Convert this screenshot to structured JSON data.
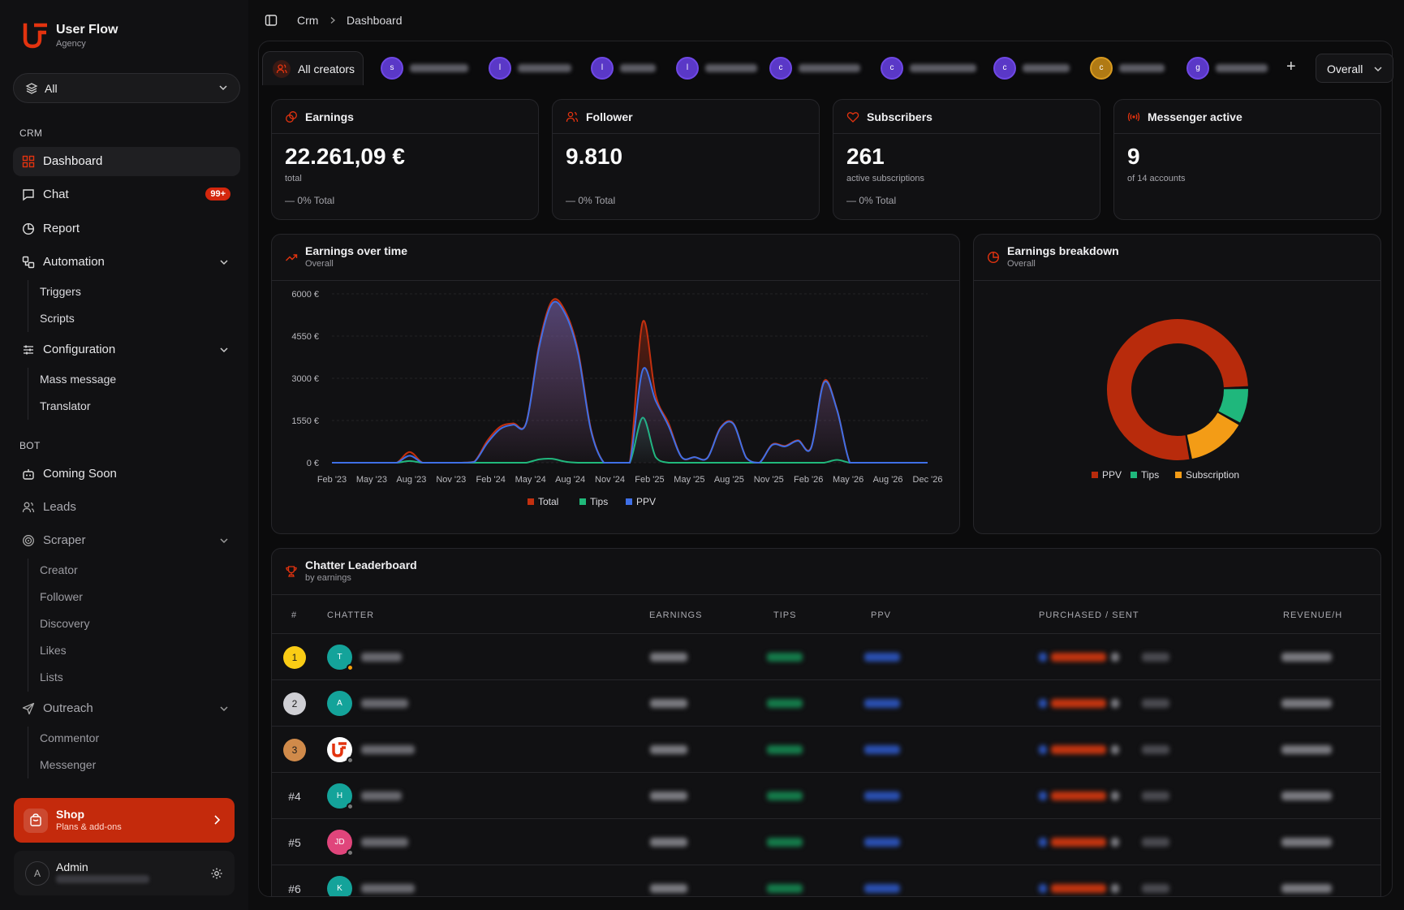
{
  "brand": {
    "name": "User Flow",
    "sub": "Agency"
  },
  "workspace_select": {
    "value": "All"
  },
  "sidebar": {
    "section_crm": "CRM",
    "dashboard": "Dashboard",
    "chat": "Chat",
    "chat_badge": "99+",
    "report": "Report",
    "automation": "Automation",
    "triggers": "Triggers",
    "scripts": "Scripts",
    "configuration": "Configuration",
    "mass_message": "Mass message",
    "translator": "Translator",
    "section_bot": "BOT",
    "coming_soon": "Coming Soon",
    "leads": "Leads",
    "scraper": "Scraper",
    "creator": "Creator",
    "follower": "Follower",
    "discovery": "Discovery",
    "likes": "Likes",
    "lists": "Lists",
    "outreach": "Outreach",
    "commentor": "Commentor",
    "messenger": "Messenger"
  },
  "shop": {
    "title": "Shop",
    "sub": "Plans & add-ons"
  },
  "admin": {
    "name": "Admin",
    "initial": "A"
  },
  "breadcrumb": {
    "root": "Crm",
    "current": "Dashboard"
  },
  "tabs": {
    "all_creators": "All creators",
    "creator_initials": [
      "s",
      "l",
      "l",
      "l",
      "c",
      "c",
      "c",
      "c",
      "g"
    ],
    "add": "+",
    "overall": "Overall"
  },
  "stats": {
    "earnings": {
      "title": "Earnings",
      "value": "22.261,09 €",
      "sub": "total",
      "delta": "— 0% Total"
    },
    "follower": {
      "title": "Follower",
      "value": "9.810",
      "delta": "— 0% Total"
    },
    "subscribers": {
      "title": "Subscribers",
      "value": "261",
      "sub": "active subscriptions",
      "delta": "— 0% Total"
    },
    "messenger": {
      "title": "Messenger active",
      "value": "9",
      "sub": "of 14 accounts"
    }
  },
  "earnings_over_time": {
    "title": "Earnings over time",
    "sub": "Overall"
  },
  "earnings_breakdown": {
    "title": "Earnings breakdown",
    "sub": "Overall"
  },
  "chart_data": [
    {
      "type": "area",
      "title": "Earnings over time",
      "x_ticks": [
        "Feb '23",
        "May '23",
        "Aug '23",
        "Nov '23",
        "Feb '24",
        "May '24",
        "Aug '24",
        "Nov '24",
        "Feb '25",
        "May '25",
        "Aug '25",
        "Nov '25",
        "Feb '26",
        "May '26",
        "Aug '26",
        "Dec '26"
      ],
      "y_ticks": [
        "6000 €",
        "4550 €",
        "3000 €",
        "1550 €",
        "0 €"
      ],
      "ylim": [
        0,
        6000
      ],
      "x": [
        "Feb '23",
        "Mar '23",
        "Apr '23",
        "May '23",
        "Jun '23",
        "Jul '23",
        "Aug '23",
        "Sep '23",
        "Oct '23",
        "Nov '23",
        "Dec '23",
        "Jan '24",
        "Feb '24",
        "Mar '24",
        "Apr '24",
        "May '24",
        "Jun '24",
        "Jul '24",
        "Aug '24",
        "Sep '24",
        "Oct '24",
        "Nov '24",
        "Dec '24",
        "Jan '25",
        "Feb '25",
        "Mar '25",
        "Apr '25",
        "May '25",
        "Jun '25",
        "Jul '25",
        "Aug '25",
        "Sep '25",
        "Oct '25",
        "Nov '25",
        "Dec '25",
        "Jan '26",
        "Feb '26",
        "Mar '26",
        "Apr '26",
        "May '26",
        "Jun '26",
        "Jul '26",
        "Aug '26",
        "Sep '26",
        "Oct '26",
        "Nov '26",
        "Dec '26"
      ],
      "series": [
        {
          "name": "Total",
          "color": "#c3300f",
          "values": [
            0,
            0,
            0,
            0,
            0,
            0,
            380,
            0,
            0,
            0,
            0,
            40,
            780,
            1280,
            1400,
            1420,
            4200,
            5750,
            5400,
            4000,
            1200,
            0,
            0,
            0,
            5000,
            2400,
            1400,
            200,
            200,
            180,
            1250,
            1400,
            180,
            0,
            650,
            600,
            800,
            540,
            2900,
            1900,
            0,
            0,
            0,
            0,
            0,
            0,
            0
          ]
        },
        {
          "name": "Tips",
          "color": "#20b97a",
          "values": [
            0,
            0,
            0,
            0,
            0,
            0,
            60,
            0,
            0,
            0,
            0,
            0,
            0,
            0,
            0,
            0,
            120,
            140,
            40,
            0,
            0,
            0,
            0,
            0,
            1600,
            200,
            0,
            0,
            0,
            0,
            0,
            0,
            0,
            0,
            0,
            0,
            0,
            0,
            0,
            100,
            0,
            0,
            0,
            0,
            0,
            0,
            0
          ]
        },
        {
          "name": "PPV",
          "color": "#3f6fe6",
          "values": [
            0,
            0,
            0,
            0,
            0,
            0,
            250,
            0,
            0,
            0,
            0,
            30,
            700,
            1200,
            1350,
            1400,
            4100,
            5650,
            5300,
            3900,
            1150,
            0,
            0,
            0,
            3300,
            2200,
            1300,
            200,
            200,
            170,
            1220,
            1380,
            170,
            0,
            630,
            580,
            780,
            520,
            2850,
            1880,
            0,
            0,
            0,
            0,
            0,
            0,
            0
          ]
        }
      ],
      "legend": [
        "Total",
        "Tips",
        "PPV"
      ],
      "legend_position": "bottom"
    },
    {
      "type": "pie",
      "title": "Earnings breakdown",
      "labels": [
        "PPV",
        "Tips",
        "Subscription"
      ],
      "values": [
        77.5,
        8.5,
        14
      ],
      "colors": [
        "#b82b0c",
        "#1fb77c",
        "#f39c16"
      ],
      "legend_position": "bottom"
    }
  ],
  "leaderboard": {
    "title": "Chatter Leaderboard",
    "sub": "by earnings",
    "columns": [
      "#",
      "CHATTER",
      "EARNINGS",
      "TIPS",
      "PPV",
      "PURCHASED / SENT",
      "REVENUE/H"
    ],
    "rows": [
      {
        "rank": "1",
        "initials": "T",
        "avatar_color": "#14a39a",
        "status_color": "#f59e0b",
        "rank_color": "#facc15"
      },
      {
        "rank": "2",
        "initials": "A",
        "avatar_color": "#14a39a",
        "status_color": "",
        "rank_color": "#cfcfd4"
      },
      {
        "rank": "3",
        "initials": "",
        "avatar_color": "#ffffff",
        "status_color": "#777",
        "rank_color": "#d08a4a"
      },
      {
        "rank": "#4",
        "initials": "H",
        "avatar_color": "#14a39a",
        "status_color": "#777",
        "rank_color": ""
      },
      {
        "rank": "#5",
        "initials": "JD",
        "avatar_color": "#e0457b",
        "status_color": "#777",
        "rank_color": ""
      },
      {
        "rank": "#6",
        "initials": "K",
        "avatar_color": "#14a39a",
        "status_color": "#777",
        "rank_color": ""
      }
    ]
  },
  "colors": {
    "accent": "#d4270d",
    "bg": "#0d0d0e"
  }
}
